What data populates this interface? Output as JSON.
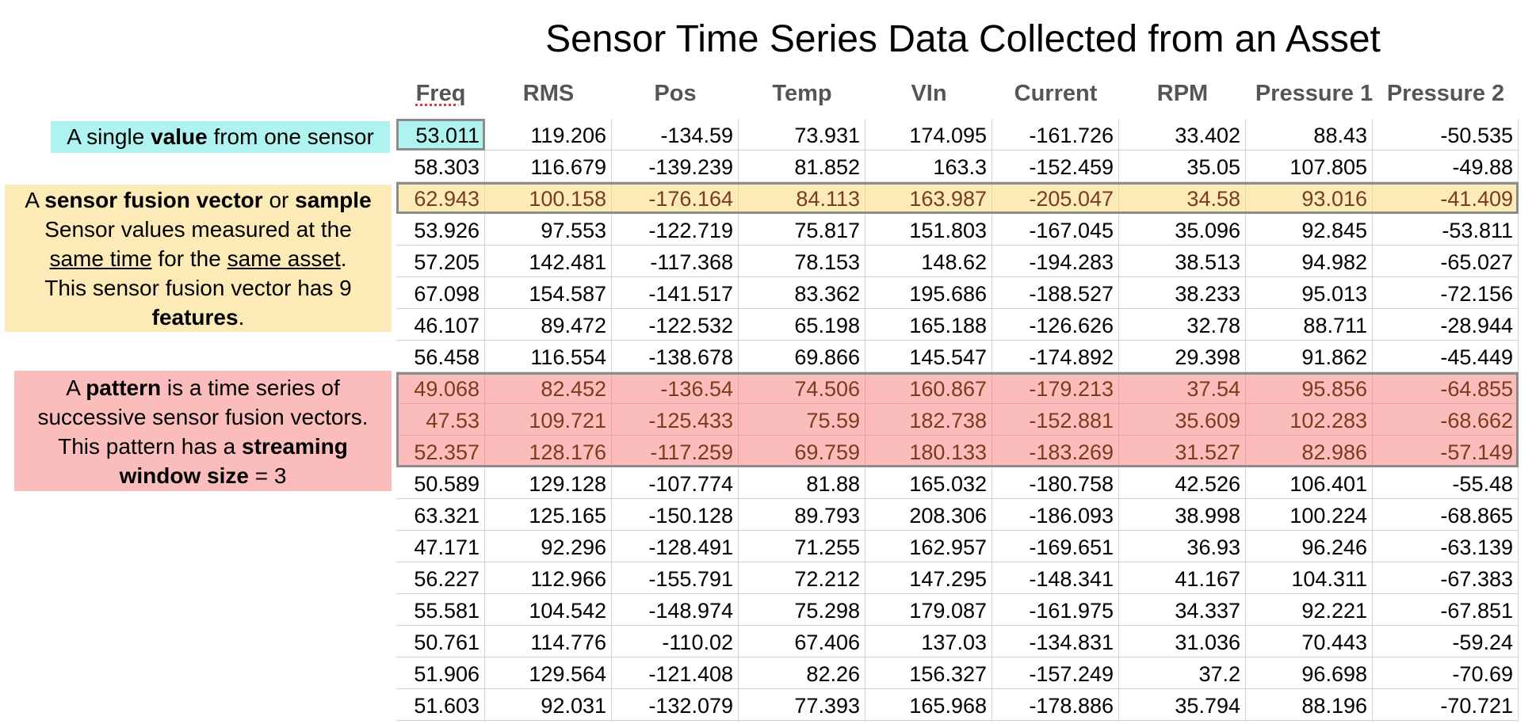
{
  "title": "Sensor Time Series Data Collected from an Asset",
  "columns": [
    "Freq",
    "RMS",
    "Pos",
    "Temp",
    "VIn",
    "Current",
    "RPM",
    "Pressure 1",
    "Pressure 2"
  ],
  "rows": [
    [
      "53.011",
      "119.206",
      "-134.59",
      "73.931",
      "174.095",
      "-161.726",
      "33.402",
      "88.43",
      "-50.535"
    ],
    [
      "58.303",
      "116.679",
      "-139.239",
      "81.852",
      "163.3",
      "-152.459",
      "35.05",
      "107.805",
      "-49.88"
    ],
    [
      "62.943",
      "100.158",
      "-176.164",
      "84.113",
      "163.987",
      "-205.047",
      "34.58",
      "93.016",
      "-41.409"
    ],
    [
      "53.926",
      "97.553",
      "-122.719",
      "75.817",
      "151.803",
      "-167.045",
      "35.096",
      "92.845",
      "-53.811"
    ],
    [
      "57.205",
      "142.481",
      "-117.368",
      "78.153",
      "148.62",
      "-194.283",
      "38.513",
      "94.982",
      "-65.027"
    ],
    [
      "67.098",
      "154.587",
      "-141.517",
      "83.362",
      "195.686",
      "-188.527",
      "38.233",
      "95.013",
      "-72.156"
    ],
    [
      "46.107",
      "89.472",
      "-122.532",
      "65.198",
      "165.188",
      "-126.626",
      "32.78",
      "88.711",
      "-28.944"
    ],
    [
      "56.458",
      "116.554",
      "-138.678",
      "69.866",
      "145.547",
      "-174.892",
      "29.398",
      "91.862",
      "-45.449"
    ],
    [
      "49.068",
      "82.452",
      "-136.54",
      "74.506",
      "160.867",
      "-179.213",
      "37.54",
      "95.856",
      "-64.855"
    ],
    [
      "47.53",
      "109.721",
      "-125.433",
      "75.59",
      "182.738",
      "-152.881",
      "35.609",
      "102.283",
      "-68.662"
    ],
    [
      "52.357",
      "128.176",
      "-117.259",
      "69.759",
      "180.133",
      "-183.269",
      "31.527",
      "82.986",
      "-57.149"
    ],
    [
      "50.589",
      "129.128",
      "-107.774",
      "81.88",
      "165.032",
      "-180.758",
      "42.526",
      "106.401",
      "-55.48"
    ],
    [
      "63.321",
      "125.165",
      "-150.128",
      "89.793",
      "208.306",
      "-186.093",
      "38.998",
      "100.224",
      "-68.865"
    ],
    [
      "47.171",
      "92.296",
      "-128.491",
      "71.255",
      "162.957",
      "-169.651",
      "36.93",
      "96.246",
      "-63.139"
    ],
    [
      "56.227",
      "112.966",
      "-155.791",
      "72.212",
      "147.295",
      "-148.341",
      "41.167",
      "104.311",
      "-67.383"
    ],
    [
      "55.581",
      "104.542",
      "-148.974",
      "75.298",
      "179.087",
      "-161.975",
      "34.337",
      "92.221",
      "-67.851"
    ],
    [
      "50.761",
      "114.776",
      "-110.02",
      "67.406",
      "137.03",
      "-134.831",
      "31.036",
      "70.443",
      "-59.24"
    ],
    [
      "51.906",
      "129.564",
      "-121.408",
      "82.26",
      "156.327",
      "-157.249",
      "37.2",
      "96.698",
      "-70.69"
    ],
    [
      "51.603",
      "92.031",
      "-132.079",
      "77.393",
      "165.968",
      "-178.886",
      "35.794",
      "88.196",
      "-70.721"
    ]
  ],
  "highlights": {
    "single_value_row": 0,
    "vector_row": 2,
    "pattern_rows": [
      8,
      9,
      10
    ]
  },
  "colors": {
    "value_highlight": "#aef3f0",
    "vector_highlight": "#fcebb6",
    "pattern_highlight": "#fbbcbc",
    "box_border": "#8c8c8c"
  },
  "labels": {
    "value": {
      "a": "A single ",
      "b": "value",
      "c": " from one sensor"
    },
    "vector": {
      "l1a": "A ",
      "l1b": "sensor fusion vector",
      "l1c": " or ",
      "l1d": "sample",
      "l2": "Sensor values measured at the",
      "l3a": "same time",
      "l3b": " for the ",
      "l3c": "same asset",
      "l3d": ".",
      "l4": "This sensor fusion vector has 9",
      "l5a": "features",
      "l5b": "."
    },
    "pattern": {
      "l1a": "A ",
      "l1b": "pattern",
      "l1c": " is a time series of",
      "l2": "successive sensor fusion vectors.",
      "l3a": "This pattern has a ",
      "l3b": "streaming",
      "l4a": "window size",
      "l4b": " = 3"
    }
  }
}
